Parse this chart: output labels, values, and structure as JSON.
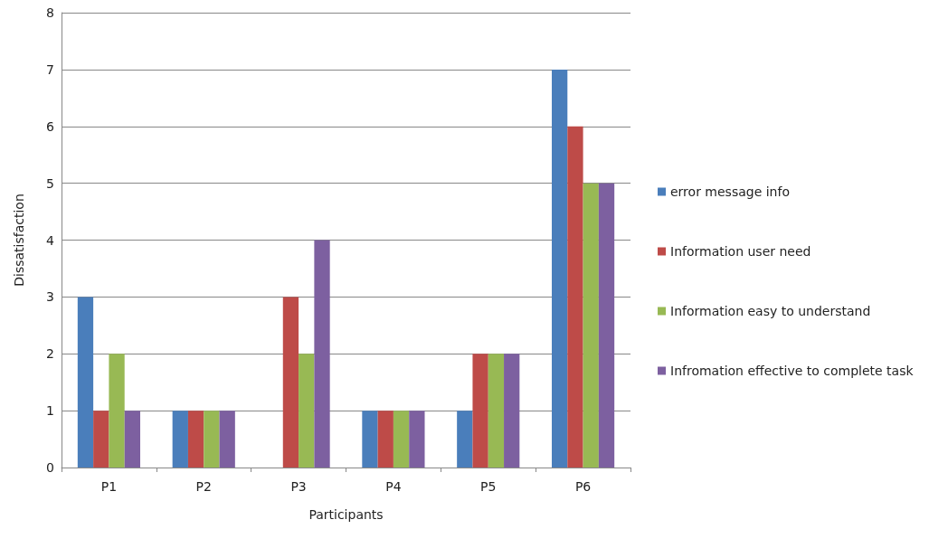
{
  "chart_data": {
    "type": "bar",
    "xlabel": "Participants",
    "ylabel": "Dissatisfaction",
    "categories": [
      "P1",
      "P2",
      "P3",
      "P4",
      "P5",
      "P6"
    ],
    "series": [
      {
        "name": "error message info",
        "color": "#4a7ebb",
        "values": [
          3,
          1,
          0,
          1,
          1,
          7
        ]
      },
      {
        "name": "Information user need",
        "color": "#be4b48",
        "values": [
          1,
          1,
          3,
          1,
          2,
          6
        ]
      },
      {
        "name": "Information easy to understand",
        "color": "#98b954",
        "values": [
          2,
          1,
          2,
          1,
          2,
          5
        ]
      },
      {
        "name": "Infromation effective to complete task",
        "color": "#7d60a0",
        "values": [
          1,
          1,
          4,
          1,
          2,
          5
        ]
      }
    ],
    "ylim": [
      0,
      8
    ],
    "yticks": [
      0,
      1,
      2,
      3,
      4,
      5,
      6,
      7,
      8
    ],
    "grid": "y",
    "legend": "right"
  }
}
